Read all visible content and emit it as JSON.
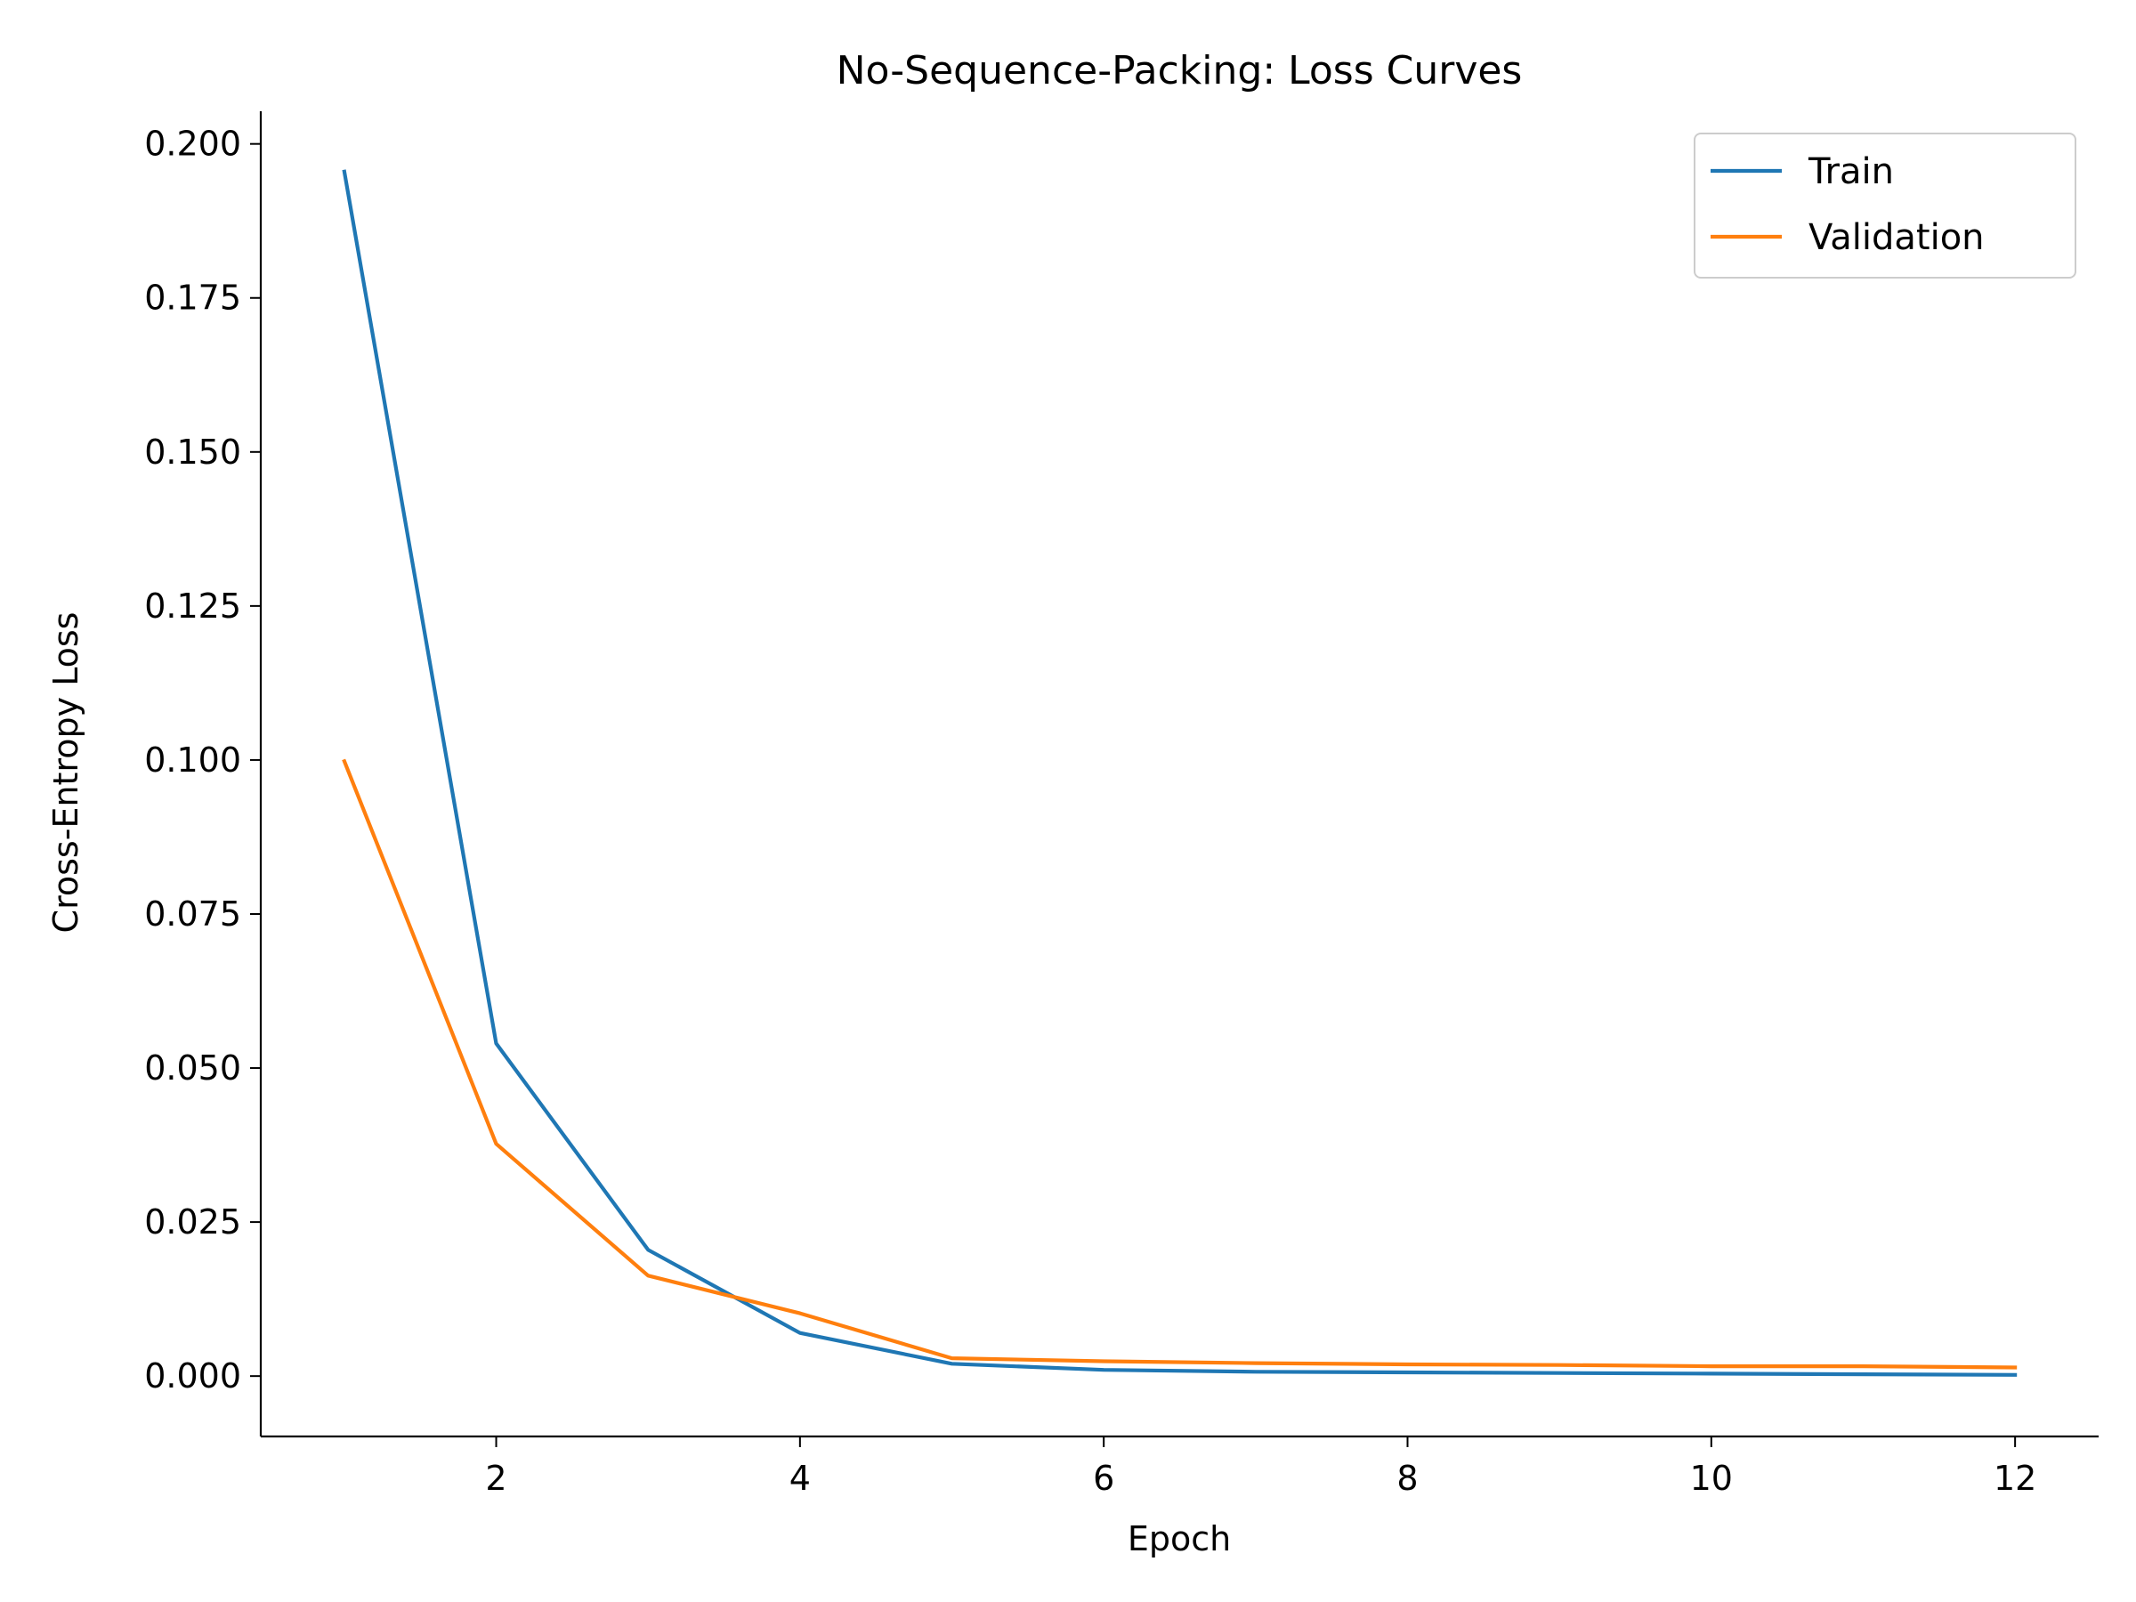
{
  "chart_data": {
    "type": "line",
    "title": "No-Sequence-Packing: Loss Curves",
    "xlabel": "Epoch",
    "ylabel": "Cross-Entropy Loss",
    "xlim": [
      0.45,
      12.55
    ],
    "ylim": [
      -0.0098,
      0.2053
    ],
    "xticks": [
      2,
      4,
      6,
      8,
      10,
      12
    ],
    "xtick_labels": [
      "2",
      "4",
      "6",
      "8",
      "10",
      "12"
    ],
    "yticks": [
      0.0,
      0.025,
      0.05,
      0.075,
      0.1,
      0.125,
      0.15,
      0.175,
      0.2
    ],
    "ytick_labels": [
      "0.000",
      "0.025",
      "0.050",
      "0.075",
      "0.100",
      "0.125",
      "0.150",
      "0.175",
      "0.200"
    ],
    "grid": false,
    "legend_position": "top-right",
    "x": [
      1,
      2,
      3,
      4,
      5,
      6,
      7,
      8,
      9,
      10,
      11,
      12
    ],
    "series": [
      {
        "name": "Train",
        "color": "#1f77b4",
        "values": [
          0.1955,
          0.054,
          0.0205,
          0.007,
          0.002,
          0.001,
          0.0007,
          0.0006,
          0.0005,
          0.0004,
          0.0003,
          0.0002
        ]
      },
      {
        "name": "Validation",
        "color": "#ff7f0e",
        "values": [
          0.0998,
          0.0377,
          0.0163,
          0.0102,
          0.0029,
          0.0024,
          0.0021,
          0.0019,
          0.0018,
          0.0016,
          0.0016,
          0.0014
        ]
      }
    ]
  }
}
